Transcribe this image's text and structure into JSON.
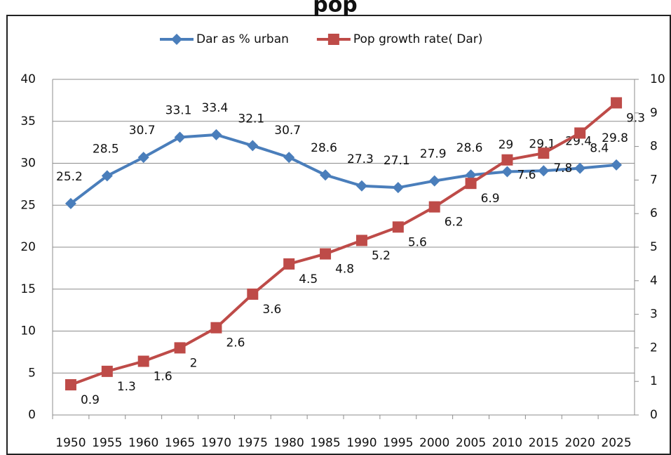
{
  "chart_data": {
    "type": "line",
    "title": "pop",
    "categories": [
      "1950",
      "1955",
      "1960",
      "1965",
      "1970",
      "1975",
      "1980",
      "1985",
      "1990",
      "1995",
      "2000",
      "2005",
      "2010",
      "2015",
      "2020",
      "2025"
    ],
    "series": [
      {
        "name": "Dar as % urban",
        "color": "#4a7ebb",
        "marker": "diamond",
        "values": [
          25.2,
          28.5,
          30.7,
          33.1,
          33.4,
          32.1,
          30.7,
          28.6,
          27.3,
          27.1,
          27.9,
          28.6,
          29,
          29.1,
          29.4,
          29.8
        ]
      },
      {
        "name": "Pop growth rate( Dar)",
        "color": "#be4b48",
        "marker": "square",
        "axis": "y2",
        "values": [
          0.9,
          1.3,
          1.6,
          2,
          2.6,
          3.6,
          4.5,
          4.8,
          5.2,
          5.6,
          6.2,
          6.9,
          7.6,
          7.8,
          8.4,
          9.3
        ]
      }
    ],
    "ylim": [
      0,
      40
    ],
    "yticks": [
      0,
      5,
      10,
      15,
      20,
      25,
      30,
      35,
      40
    ],
    "y2lim": [
      0,
      10
    ],
    "y2ticks": [
      0,
      1,
      2,
      3,
      4,
      5,
      6,
      7,
      8,
      9,
      10
    ],
    "grid": true,
    "legend": "top"
  }
}
